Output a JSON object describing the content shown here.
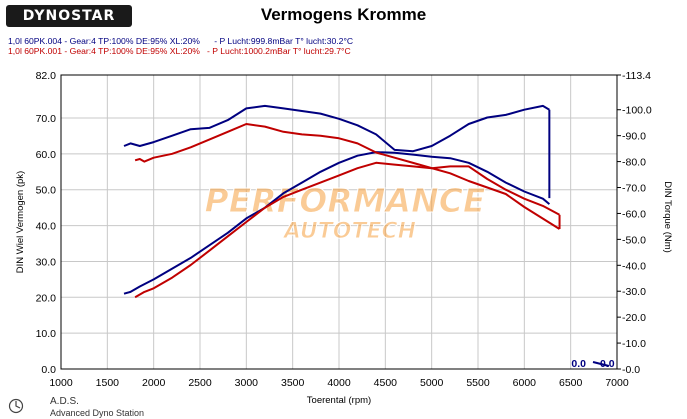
{
  "header": {
    "logo_text": "DYNOSTAR",
    "title": "Vermogens Kromme",
    "run_1": "1,0l 60PK.004 - Gear:4 TP:100% DE:95% XL:20%      - P Lucht:999.8mBar T° lucht:30.2°C",
    "run_2": "1,0l 60PK.001 - Gear:4 TP:100% DE:95% XL:20%   - P Lucht:1000.2mBar T° lucht:29.7°C"
  },
  "watermark": {
    "line1": "PERFORMANCE",
    "line2": "AUTOTECH"
  },
  "footer": {
    "brand": "A.D.S.",
    "subtitle": "Advanced Dyno Station"
  },
  "colors": {
    "run_1": "#000080",
    "run_2": "#c00000",
    "grid": "#c8c8c8",
    "watermark": "#f5a040"
  },
  "chart_data": {
    "type": "line",
    "xlabel": "Toerental (rpm)",
    "ylabel": "DIN Wiel Vermogen (pk)",
    "ylabel_right": "DIN Torque (Nm)",
    "xlim": [
      1000,
      7000
    ],
    "ylim": [
      0,
      82
    ],
    "ylim_right": [
      0,
      113.4
    ],
    "x_ticks": [
      1000,
      1500,
      2000,
      2500,
      3000,
      3500,
      4000,
      4500,
      5000,
      5500,
      6000,
      6500,
      7000
    ],
    "y_ticks": [
      "0.0",
      "10.0",
      "20.0",
      "30.0",
      "40.0",
      "50.0",
      "60.0",
      "70.0",
      "82.0"
    ],
    "y_tick_values": [
      0,
      10,
      20,
      30,
      40,
      50,
      60,
      70,
      82
    ],
    "y_right_ticks": [
      "-0.0",
      "-10.0",
      "-20.0",
      "-30.0",
      "-40.0",
      "-50.0",
      "-60.0",
      "-70.0",
      "-80.0",
      "-90.0",
      "-100.0",
      "-113.4"
    ],
    "y_right_tick_values": [
      0,
      10,
      20,
      30,
      40,
      50,
      60,
      70,
      80,
      90,
      100,
      113.4
    ],
    "grid": true,
    "readout": {
      "value_left": "0.0",
      "value_right": "0.0"
    },
    "series": [
      {
        "axis": "left",
        "color": "#000080",
        "x": [
          1680,
          1750,
          1850,
          2000,
          2200,
          2400,
          2600,
          2800,
          3000,
          3200,
          3400,
          3600,
          3800,
          4000,
          4200,
          4400,
          4600,
          4800,
          5000,
          5200,
          5400,
          5600,
          5800,
          6000,
          6200,
          6270
        ],
        "y": [
          21,
          21.5,
          23,
          25,
          28,
          31,
          34.5,
          38,
          42,
          45,
          49,
          52,
          55,
          57.5,
          59.5,
          60.5,
          60.3,
          59.8,
          59.2,
          58.8,
          57.5,
          55,
          52,
          49.5,
          47.5,
          46
        ]
      },
      {
        "axis": "right",
        "color": "#000080",
        "x": [
          1680,
          1750,
          1850,
          2000,
          2200,
          2400,
          2600,
          2800,
          3000,
          3200,
          3400,
          3600,
          3800,
          4000,
          4200,
          4400,
          4600,
          4800,
          5000,
          5200,
          5400,
          5600,
          5800,
          6000,
          6200,
          6270
        ],
        "y": [
          86,
          87,
          86,
          87.5,
          90,
          92.5,
          93,
          96,
          100.5,
          101.5,
          100.5,
          99.5,
          98.5,
          96.5,
          94,
          90.5,
          84.5,
          84,
          86,
          90,
          94.5,
          97,
          98,
          100,
          101.5,
          100
        ]
      },
      {
        "axis": "left",
        "color": "#c00000",
        "x": [
          1800,
          1900,
          2000,
          2200,
          2400,
          2600,
          2800,
          3000,
          3200,
          3400,
          3600,
          3800,
          4000,
          4200,
          4400,
          4600,
          4800,
          5000,
          5200,
          5400,
          5600,
          5800,
          6000,
          6200,
          6380
        ],
        "y": [
          20,
          21.5,
          22.5,
          25.5,
          29,
          33,
          37,
          41,
          45,
          48,
          50,
          52,
          54,
          56,
          57.5,
          57,
          56.5,
          56,
          56.5,
          56.5,
          53,
          50,
          47.5,
          45.5,
          43
        ]
      },
      {
        "axis": "right",
        "color": "#c00000",
        "x": [
          1800,
          1850,
          1900,
          2000,
          2200,
          2400,
          2600,
          2800,
          3000,
          3200,
          3400,
          3600,
          3800,
          4000,
          4200,
          4400,
          4600,
          4800,
          5000,
          5200,
          5400,
          5600,
          5800,
          6000,
          6200,
          6380
        ],
        "y": [
          80.5,
          81,
          80,
          81.5,
          83,
          85.5,
          88.5,
          91.5,
          94.5,
          93.5,
          91.5,
          90.5,
          90,
          89,
          87,
          83.5,
          81.5,
          79.5,
          77.5,
          75.5,
          72.5,
          70,
          67.5,
          62.5,
          58,
          54
        ]
      }
    ]
  }
}
